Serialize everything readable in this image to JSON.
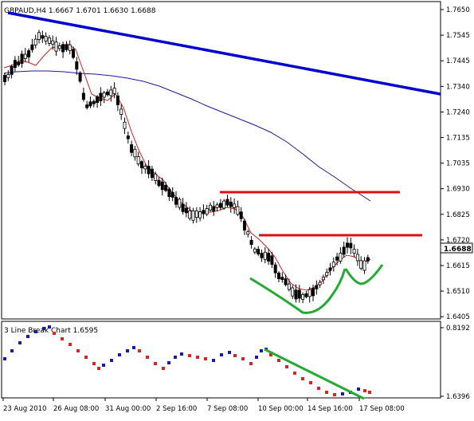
{
  "window": {
    "symbol_header": "GBPAUD,H4  1.6667 1.6701 1.6630 1.6688"
  },
  "main_chart": {
    "price_axis_labels": [
      "1.7650",
      "1.7545",
      "1.7445",
      "1.7340",
      "1.7240",
      "1.7135",
      "1.7035",
      "1.6930",
      "1.6825",
      "1.6720",
      "1.6615",
      "1.6510",
      "1.6405"
    ],
    "current_price": "1.6688",
    "time_axis_labels": [
      "23 Aug 2010",
      "26 Aug 08:00",
      "31 Aug 00:00",
      "2 Sep 16:00",
      "7 Sep 08:00",
      "10 Sep 00:00",
      "14 Sep 16:00",
      "17 Sep 08:00"
    ],
    "colors": {
      "bull_candle": "#ffffff",
      "bear_candle": "#000000",
      "trendline": "#0000cc",
      "resistance": "#dd1111",
      "pattern": "#22aa33",
      "ma_fast": "#cc2222",
      "ma_slow": "#1a1a99",
      "current_price_bg": "#ffffff"
    }
  },
  "sub_chart": {
    "title": "3 Line Break Chart 1.6595",
    "axis_labels": [
      "0.8192",
      "1.6396"
    ],
    "colors": {
      "up_brick": "#1a1aaa",
      "down_brick": "#dd2222",
      "pattern": "#22aa33"
    }
  }
}
